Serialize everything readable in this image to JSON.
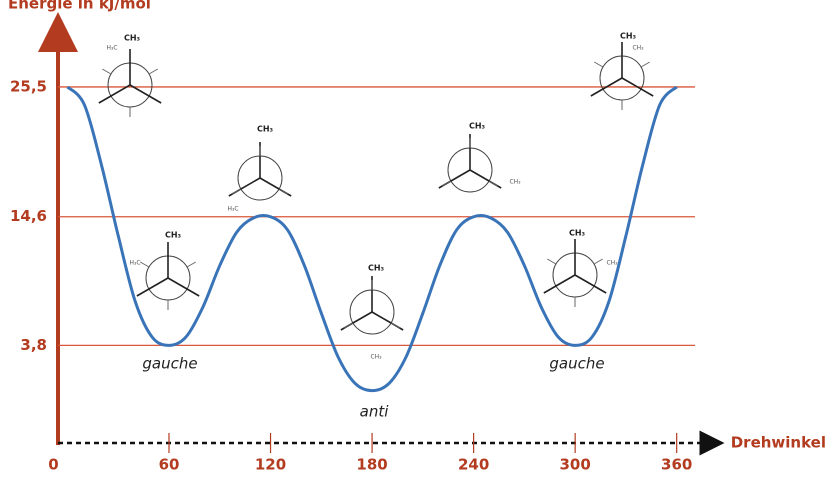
{
  "chart_data": {
    "type": "line",
    "y_label": "Energie in kJ/mol",
    "x_label": "Drehwinkel",
    "x": [
      0,
      10,
      20,
      30,
      40,
      50,
      60,
      70,
      80,
      90,
      100,
      110,
      120,
      130,
      140,
      150,
      160,
      170,
      180,
      190,
      200,
      210,
      220,
      230,
      240,
      250,
      260,
      270,
      280,
      290,
      300,
      310,
      320,
      330,
      340,
      350,
      360
    ],
    "values": [
      25.5,
      24,
      19,
      13,
      7.5,
      4.5,
      3.8,
      4.5,
      7,
      10.5,
      13.3,
      14.5,
      14.6,
      13.5,
      10.5,
      6.5,
      2.8,
      0.6,
      0,
      0.6,
      2.8,
      6.5,
      10.5,
      13.5,
      14.6,
      14.5,
      13.3,
      10.5,
      7,
      4.5,
      3.8,
      4.5,
      7.5,
      13,
      19,
      24,
      25.5
    ],
    "color": "#3a74b8",
    "xlim": [
      -5,
      385
    ],
    "xticks": [
      0,
      60,
      120,
      180,
      240,
      300,
      360
    ],
    "ylim": [
      -4.4,
      30.7
    ],
    "yticks": [
      {
        "value": 3.8,
        "label": "3,8"
      },
      {
        "value": 14.6,
        "label": "14,6"
      },
      {
        "value": 25.5,
        "label": "25,5"
      }
    ],
    "grid": true,
    "annotations": [
      "gauche",
      "anti",
      "gauche"
    ],
    "conformations": [
      {
        "labels": [
          "CH₃",
          "H₃C"
        ]
      },
      {
        "labels": [
          "CH₃",
          "H₃C"
        ]
      },
      {
        "labels": [
          "CH₃",
          "CH₃"
        ]
      },
      {
        "labels": [
          "CH₃",
          "H₃C"
        ]
      },
      {
        "labels": [
          "CH₃",
          "CH₃"
        ]
      },
      {
        "labels": [
          "CH₃",
          "CH₃"
        ]
      },
      {
        "labels": [
          "CH₃",
          "CH₃"
        ]
      }
    ]
  }
}
